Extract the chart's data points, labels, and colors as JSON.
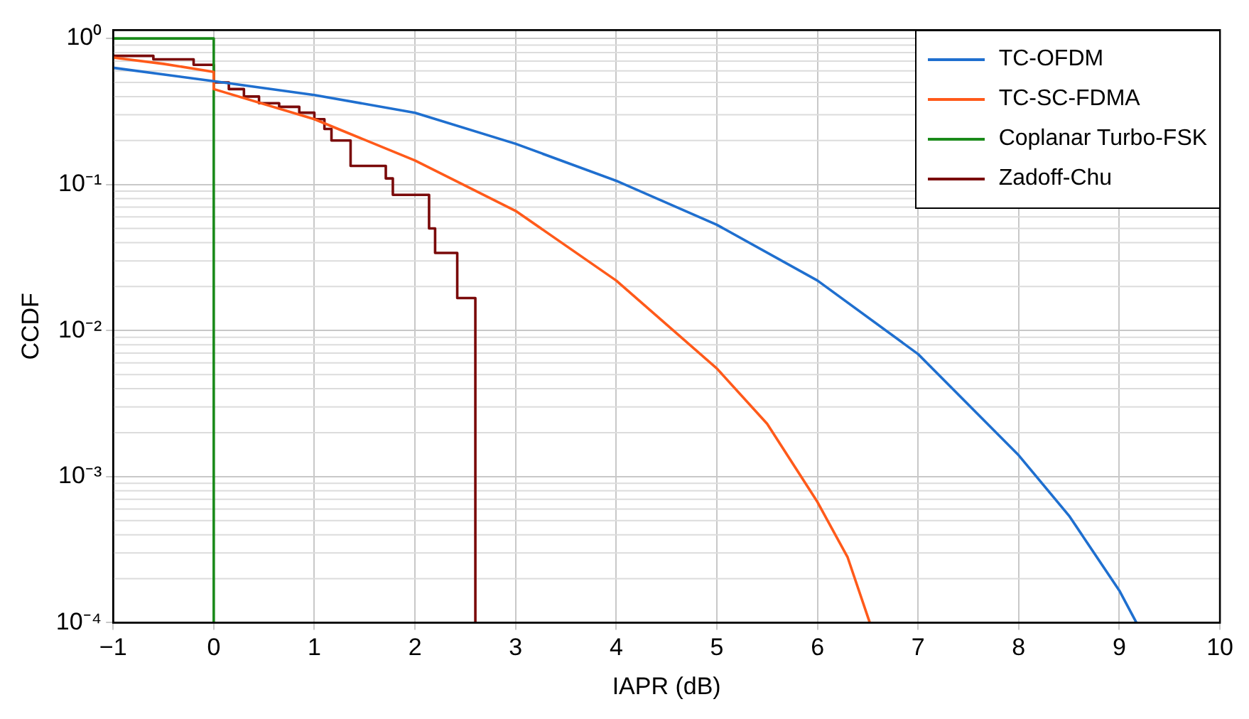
{
  "chart_data": {
    "type": "line",
    "xlabel": "IAPR (dB)",
    "ylabel": "CCDF",
    "log": "y",
    "grid": true,
    "legend": "top right",
    "marker": "none",
    "xlim": [
      -1,
      10
    ],
    "xticks": [
      {
        "value": -1,
        "label": "−1"
      },
      0,
      1,
      2,
      3,
      4,
      5,
      6,
      7,
      8,
      9,
      10
    ],
    "ylim": [
      0.0001,
      1.14
    ],
    "yticks": [
      {
        "value": 0.0001,
        "label": "10⁻⁴"
      },
      {
        "value": 0.001,
        "label": "10⁻³"
      },
      {
        "value": 0.01,
        "label": "10⁻²"
      },
      {
        "value": 0.1,
        "label": "10⁻¹"
      },
      {
        "value": 1,
        "label": "10⁰"
      }
    ],
    "series": [
      {
        "name": "TC-OFDM",
        "color": "#1f6fcf",
        "x": [
          -1,
          0,
          1,
          2,
          3,
          4,
          5,
          6,
          7,
          8,
          8.5,
          9,
          9.17
        ],
        "values": [
          0.63,
          0.51,
          0.41,
          0.31,
          0.19,
          0.106,
          0.053,
          0.022,
          0.0069,
          0.0014,
          0.00054,
          0.000166,
          0.0001
        ]
      },
      {
        "name": "TC-SC-FDMA",
        "color": "#ff5a1a",
        "x": [
          -1,
          -0.5,
          0,
          0,
          1,
          2,
          3,
          4,
          5,
          5.5,
          6,
          6.3,
          6.52
        ],
        "values": [
          0.74,
          0.67,
          0.59,
          0.45,
          0.28,
          0.146,
          0.066,
          0.022,
          0.0055,
          0.0023,
          0.00067,
          0.00028,
          0.0001
        ]
      },
      {
        "name": "Coplanar Turbo-FSK",
        "color": "#1a8a1a",
        "x": [
          -1,
          0,
          0
        ],
        "values": [
          1,
          1,
          0.0001
        ]
      },
      {
        "name": "Zadoff-Chu",
        "type": "step",
        "color": "#7a0a0a",
        "x": [
          -1,
          -0.6,
          -0.2,
          0,
          0.15,
          0.3,
          0.45,
          0.65,
          0.85,
          1.0,
          1.1,
          1.17,
          1.36,
          1.71,
          1.78,
          2.14,
          2.2,
          2.42,
          2.6
        ],
        "values": [
          0.76,
          0.72,
          0.66,
          0.5,
          0.45,
          0.4,
          0.36,
          0.34,
          0.31,
          0.28,
          0.24,
          0.2,
          0.134,
          0.11,
          0.085,
          0.05,
          0.034,
          0.0167,
          0.0001
        ]
      }
    ]
  }
}
